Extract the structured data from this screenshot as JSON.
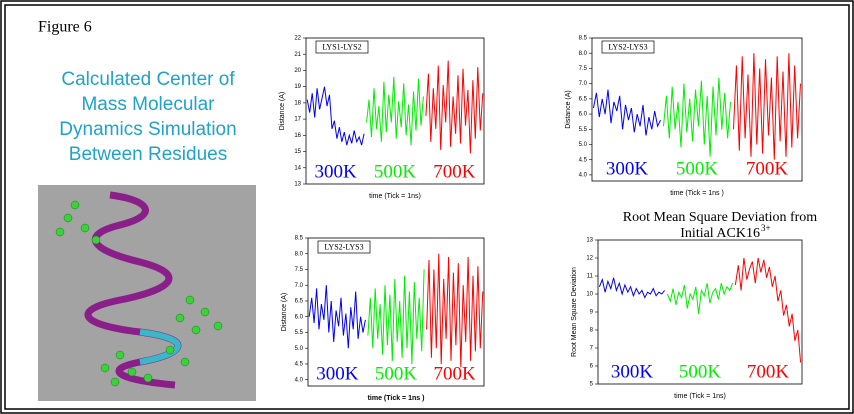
{
  "figure_label": "Figure 6",
  "heading": [
    "Calculated Center of",
    "Mass Molecular",
    "Dynamics Simulation",
    "Between Residues"
  ],
  "chart_data": [
    {
      "type": "line",
      "legend_label": "LYS1-LYS2",
      "x_label": "time (Tick = 1ns)",
      "y_label": "Distance (A)",
      "ylim": [
        13,
        22
      ],
      "yticks": [
        13,
        14,
        15,
        16,
        17,
        18,
        19,
        20,
        21,
        22
      ],
      "series": [
        {
          "name": "300K",
          "color": "#0000ff",
          "values": [
            18.2,
            17.4,
            18.6,
            17.1,
            18.9,
            17.6,
            18.3,
            19.0,
            17.8,
            18.5,
            16.4,
            16.9,
            15.8,
            16.5,
            15.6,
            16.2,
            15.4,
            16.0,
            15.5,
            16.3,
            15.6,
            15.9,
            15.4,
            16.1
          ]
        },
        {
          "name": "500K",
          "color": "#00ee00",
          "values": [
            16.8,
            18.2,
            15.9,
            18.9,
            16.4,
            17.8,
            15.6,
            19.3,
            16.2,
            18.5,
            16.8,
            19.6,
            15.8,
            18.1,
            16.5,
            19.2,
            16.0,
            17.9,
            15.4,
            18.7,
            16.3,
            19.5,
            16.6,
            18.4
          ]
        },
        {
          "name": "700K",
          "color": "#ff0000",
          "values": [
            17.2,
            19.8,
            15.6,
            18.9,
            16.4,
            20.3,
            15.1,
            19.1,
            16.8,
            20.6,
            15.3,
            18.4,
            16.1,
            19.7,
            15.5,
            20.1,
            16.6,
            18.8,
            14.9,
            19.4,
            15.8,
            20.2,
            16.3,
            18.6
          ]
        }
      ]
    },
    {
      "type": "line",
      "legend_label": "LYS2-LYS3",
      "x_label": "time (Tick = 1ns )",
      "y_label": "Distance (A)",
      "ylim": [
        3.8,
        8.5
      ],
      "yticks": [
        {
          "value": 4,
          "label": "4.0"
        },
        4.5,
        {
          "value": 5,
          "label": "5.0"
        },
        5.5,
        {
          "value": 6,
          "label": "6.0"
        },
        6.5,
        {
          "value": 7,
          "label": "7.0"
        },
        7.5,
        {
          "value": 8,
          "label": "8.0"
        },
        8.5
      ],
      "series": [
        {
          "name": "300K",
          "color": "#0000ff",
          "values": [
            6.2,
            6.7,
            5.9,
            6.5,
            6.0,
            6.8,
            5.7,
            6.4,
            6.1,
            6.6,
            5.5,
            6.3,
            5.8,
            6.2,
            5.4,
            6.0,
            5.6,
            6.3,
            5.3,
            5.9,
            5.5,
            6.1,
            5.6,
            5.8
          ]
        },
        {
          "name": "500K",
          "color": "#00ee00",
          "values": [
            5.6,
            6.6,
            5.2,
            6.9,
            5.5,
            6.4,
            4.9,
            7.0,
            5.4,
            6.5,
            5.1,
            6.8,
            5.6,
            7.1,
            5.0,
            6.6,
            4.6,
            6.9,
            5.3,
            7.2,
            5.5,
            6.7,
            5.2,
            6.4
          ]
        },
        {
          "name": "700K",
          "color": "#ff0000",
          "values": [
            5.5,
            7.6,
            4.8,
            7.9,
            5.2,
            7.3,
            4.6,
            8.0,
            5.0,
            7.5,
            4.7,
            7.8,
            5.3,
            7.2,
            4.5,
            7.9,
            5.1,
            7.4,
            4.6,
            8.0,
            4.9,
            7.6,
            5.2,
            7.0
          ]
        }
      ]
    },
    {
      "type": "line",
      "legend_label": "LYS2-LYS3",
      "x_label": "time (Tick = 1ns )",
      "y_label": "Distance (A)",
      "ylim": [
        3.8,
        8.5
      ],
      "yticks": [
        {
          "value": 4,
          "label": "4.0"
        },
        4.5,
        {
          "value": 5,
          "label": "5.0"
        },
        5.5,
        {
          "value": 6,
          "label": "6.0"
        },
        6.5,
        {
          "value": 7,
          "label": "7.0"
        },
        7.5,
        {
          "value": 8,
          "label": "8.0"
        },
        8.5
      ],
      "series": [
        {
          "name": "300K",
          "color": "#0000ff",
          "values": [
            6.0,
            6.6,
            5.8,
            6.9,
            5.6,
            6.4,
            5.9,
            7.0,
            5.5,
            6.5,
            5.2,
            6.2,
            5.7,
            6.6,
            5.4,
            6.1,
            5.0,
            6.3,
            5.6,
            6.8,
            5.3,
            6.0,
            5.5,
            5.9
          ]
        },
        {
          "name": "500K",
          "color": "#00ee00",
          "values": [
            5.4,
            6.6,
            5.0,
            6.9,
            5.3,
            6.4,
            4.8,
            7.0,
            5.1,
            6.7,
            4.6,
            7.2,
            5.2,
            6.5,
            4.7,
            7.3,
            5.0,
            6.8,
            4.5,
            7.1,
            5.3,
            6.6,
            4.9,
            7.5
          ]
        },
        {
          "name": "700K",
          "color": "#ff0000",
          "values": [
            5.6,
            7.8,
            4.7,
            7.5,
            5.0,
            8.0,
            4.5,
            7.2,
            5.3,
            7.9,
            4.6,
            7.4,
            5.1,
            7.7,
            4.4,
            7.0,
            5.2,
            7.9,
            4.6,
            7.3,
            4.9,
            7.6,
            5.0,
            6.8
          ]
        }
      ]
    },
    {
      "type": "line",
      "title": [
        "Root Mean Square Deviation from",
        "Initial ACK16"
      ],
      "title_superscript": "3+",
      "x_label": "time (Tick = 1ns)",
      "y_label": "Root Mean Square Deviation",
      "ylim": [
        5,
        13
      ],
      "yticks": [
        5,
        6,
        7,
        8,
        9,
        10,
        11,
        12,
        13
      ],
      "series": [
        {
          "name": "300K",
          "color": "#0000ff",
          "values": [
            10.4,
            10.8,
            10.1,
            10.7,
            10.3,
            10.9,
            10.2,
            10.6,
            10.0,
            10.5,
            10.1,
            10.4,
            9.9,
            10.3,
            10.0,
            10.2,
            9.8,
            10.1,
            10.0,
            10.3,
            9.9,
            10.1,
            10.0,
            10.2
          ]
        },
        {
          "name": "500K",
          "color": "#00ee00",
          "values": [
            10.0,
            9.6,
            10.3,
            9.4,
            10.1,
            9.8,
            10.5,
            9.2,
            10.0,
            9.7,
            10.4,
            8.9,
            10.2,
            9.9,
            10.6,
            9.5,
            10.1,
            10.3,
            9.7,
            10.6,
            10.0,
            10.4,
            10.2,
            10.6
          ]
        },
        {
          "name": "700K",
          "color": "#ff0000",
          "values": [
            10.5,
            11.6,
            10.2,
            12.0,
            10.8,
            11.4,
            11.8,
            10.6,
            12.0,
            11.2,
            11.9,
            10.9,
            11.5,
            10.4,
            11.0,
            9.6,
            10.2,
            8.8,
            9.4,
            8.2,
            8.9,
            7.4,
            8.0,
            6.2
          ]
        }
      ]
    }
  ]
}
